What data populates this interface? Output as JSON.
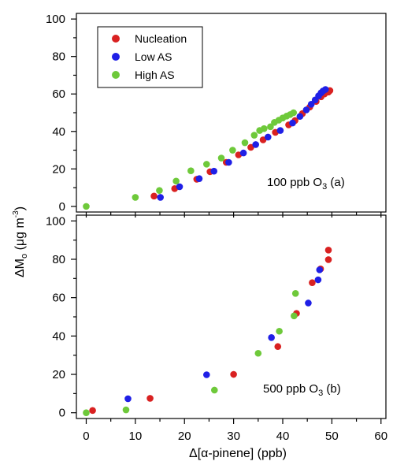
{
  "colors": {
    "Nucleation": "#d92121",
    "Low AS": "#1f1fe6",
    "High AS": "#6ec93a"
  },
  "chart_data": [
    {
      "type": "scatter",
      "panel_label": {
        "prefix": "100 ppb O",
        "sub": "3",
        "suffix": " (a)"
      },
      "xlim": [
        -2,
        61
      ],
      "ylim": [
        -3,
        103
      ],
      "yticks": [
        0,
        20,
        40,
        60,
        80,
        100
      ],
      "xticks": [
        0,
        10,
        20,
        30,
        40,
        50,
        60
      ],
      "legend_position": "top-left",
      "series": [
        {
          "name": "Nucleation",
          "points": [
            [
              13.8,
              5.5
            ],
            [
              18,
              9.5
            ],
            [
              22.5,
              14.5
            ],
            [
              25.2,
              18.5
            ],
            [
              28.5,
              23.5
            ],
            [
              31,
              27.5
            ],
            [
              33.5,
              31.5
            ],
            [
              36,
              35.5
            ],
            [
              38.5,
              39.5
            ],
            [
              41.2,
              43.5
            ],
            [
              42.5,
              45.8
            ],
            [
              44,
              49.5
            ],
            [
              45.5,
              53
            ],
            [
              46.8,
              56
            ],
            [
              47.8,
              58.5
            ],
            [
              48.5,
              60
            ],
            [
              49.3,
              61
            ],
            [
              49.6,
              61.8
            ]
          ]
        },
        {
          "name": "Low AS",
          "points": [
            [
              15.1,
              4.8
            ],
            [
              19,
              10.5
            ],
            [
              23,
              14.8
            ],
            [
              26,
              18.8
            ],
            [
              29,
              23.5
            ],
            [
              32,
              28.5
            ],
            [
              34.5,
              33
            ],
            [
              37,
              37
            ],
            [
              39.5,
              40.5
            ],
            [
              42,
              44.5
            ],
            [
              43.5,
              48
            ],
            [
              44.8,
              51.5
            ],
            [
              45.8,
              54.5
            ],
            [
              46.6,
              56.8
            ],
            [
              47.3,
              59
            ],
            [
              47.8,
              60.6
            ],
            [
              48.2,
              61.6
            ],
            [
              48.7,
              62.4
            ]
          ]
        },
        {
          "name": "High AS",
          "points": [
            [
              0,
              0
            ],
            [
              10,
              4.8
            ],
            [
              14.9,
              8.5
            ],
            [
              18.3,
              13.5
            ],
            [
              21.3,
              19
            ],
            [
              24.5,
              22.5
            ],
            [
              27.5,
              25.8
            ],
            [
              29.8,
              30
            ],
            [
              32.3,
              34
            ],
            [
              34.2,
              38
            ],
            [
              35.3,
              40.5
            ],
            [
              36.2,
              41.5
            ],
            [
              37.5,
              42.5
            ],
            [
              38.3,
              44.8
            ],
            [
              39.2,
              46
            ],
            [
              40,
              47.2
            ],
            [
              40.8,
              48.2
            ],
            [
              41.5,
              49
            ],
            [
              42.2,
              50
            ]
          ]
        }
      ]
    },
    {
      "type": "scatter",
      "panel_label": {
        "prefix": "500 ppb O",
        "sub": "3",
        "suffix": " (b)"
      },
      "xlim": [
        -2,
        61
      ],
      "ylim": [
        -3,
        103
      ],
      "yticks": [
        0,
        20,
        40,
        60,
        80,
        100
      ],
      "xticks": [
        0,
        10,
        20,
        30,
        40,
        50,
        60
      ],
      "xticklabels": [
        "0",
        "10",
        "20",
        "30",
        "40",
        "50",
        "60"
      ],
      "series": [
        {
          "name": "Nucleation",
          "points": [
            [
              1.3,
              1.2
            ],
            [
              13,
              7.5
            ],
            [
              30,
              20
            ],
            [
              39,
              34.5
            ],
            [
              42.8,
              51.8
            ],
            [
              46,
              67.8
            ],
            [
              47.7,
              75
            ],
            [
              49.3,
              79.8
            ],
            [
              49.3,
              84.8
            ]
          ]
        },
        {
          "name": "Low AS",
          "points": [
            [
              8.5,
              7.3
            ],
            [
              24.5,
              19.8
            ],
            [
              37.7,
              39.2
            ],
            [
              45.2,
              57.2
            ],
            [
              47.2,
              69.3
            ],
            [
              47.5,
              74.5
            ]
          ]
        },
        {
          "name": "High AS",
          "points": [
            [
              0,
              0
            ],
            [
              8.1,
              1.5
            ],
            [
              26.1,
              11.8
            ],
            [
              35,
              31
            ],
            [
              39.3,
              42.5
            ],
            [
              42.3,
              50.5
            ],
            [
              42.6,
              62.2
            ]
          ]
        }
      ]
    }
  ],
  "axes": {
    "ylabel": {
      "main": "ΔM",
      "sub": "o",
      "unit_pre": " (μg m",
      "sup": "-3",
      "unit_post": ")"
    },
    "xlabel": "Δ[α-pinene] (ppb)"
  },
  "legend": {
    "entries": [
      "Nucleation",
      "Low AS",
      "High AS"
    ]
  }
}
